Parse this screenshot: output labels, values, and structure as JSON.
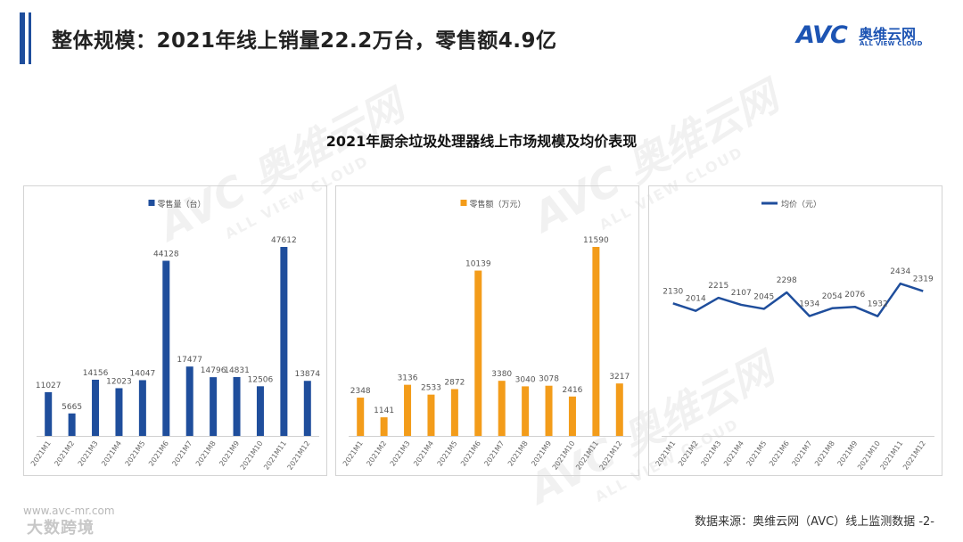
{
  "header": {
    "title": "整体规模：2021年线上销量22.2万台，零售额4.9亿"
  },
  "logo": {
    "mark": "AVC",
    "name_cn": "奥维云网",
    "name_en": "ALL VIEW CLOUD"
  },
  "watermark": {
    "main": "AVC 奥维云网",
    "sub": "ALL VIEW CLOUD"
  },
  "footer": {
    "url": "www.avc-mr.com",
    "brand": "大数跨境",
    "source": "数据来源：奥维云网（AVC）线上监测数据 -2-"
  },
  "colors": {
    "brand": "#1d54b3",
    "volume": "#1f4e9c",
    "sales": "#f39c1a",
    "price": "#1f4e9c"
  },
  "chart_title": "2021年厨余垃圾处理器线上市场规模及均价表现",
  "chart_data": [
    {
      "type": "bar",
      "legend": "零售量（台）",
      "categories": [
        "2021M1",
        "2021M2",
        "2021M3",
        "2021M4",
        "2021M5",
        "2021M6",
        "2021M7",
        "2021M8",
        "2021M9",
        "2021M10",
        "2021M11",
        "2021M12"
      ],
      "values": [
        11027,
        5665,
        14156,
        12023,
        14047,
        44128,
        17477,
        14796,
        14831,
        12506,
        47612,
        13874
      ],
      "color": "#1f4e9c",
      "legend_position": "top"
    },
    {
      "type": "bar",
      "legend": "零售额（万元）",
      "categories": [
        "2021M1",
        "2021M2",
        "2021M3",
        "2021M4",
        "2021M5",
        "2021M6",
        "2021M7",
        "2021M8",
        "2021M9",
        "2021M10",
        "2021M11",
        "2021M12"
      ],
      "values": [
        2348,
        1141,
        3136,
        2533,
        2872,
        10139,
        3380,
        3040,
        3078,
        2416,
        11590,
        3217
      ],
      "color": "#f39c1a",
      "legend_position": "top"
    },
    {
      "type": "line",
      "legend": "均价（元）",
      "categories": [
        "2021M1",
        "2021M2",
        "2021M3",
        "2021M4",
        "2021M5",
        "2021M6",
        "2021M7",
        "2021M8",
        "2021M9",
        "2021M10",
        "2021M11",
        "2021M12"
      ],
      "values": [
        2130,
        2014,
        2215,
        2107,
        2045,
        2298,
        1934,
        2054,
        2076,
        1932,
        2434,
        2319
      ],
      "color": "#1f4e9c",
      "legend_position": "top"
    }
  ]
}
